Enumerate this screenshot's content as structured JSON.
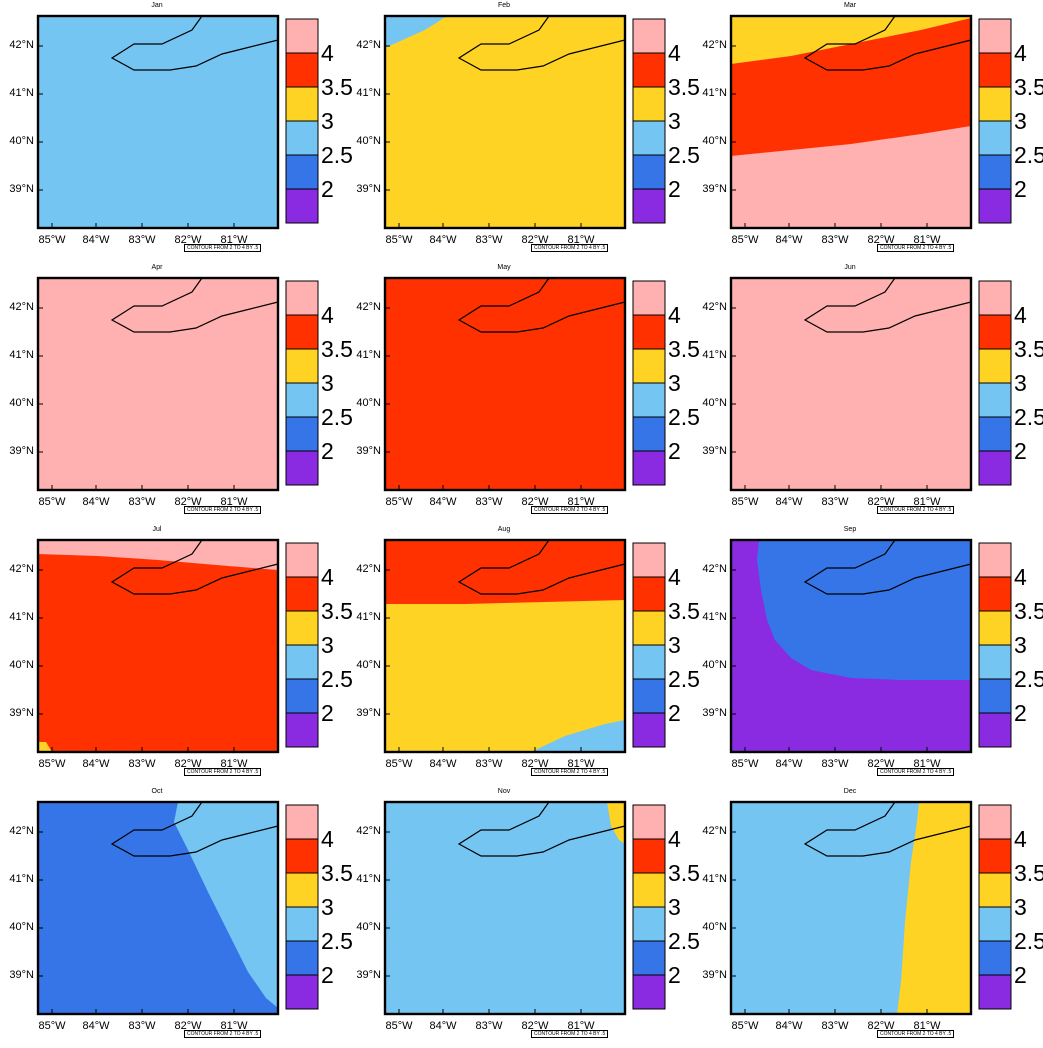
{
  "palette": {
    "purple": "#8a2be2",
    "blue": "#3575e8",
    "lightblue": "#74c5f2",
    "yellow": "#fed323",
    "red": "#ff3100",
    "pink": "#ffb0b0"
  },
  "colorbar": {
    "colors_bottom_to_top": [
      "#8a2be2",
      "#3575e8",
      "#74c5f2",
      "#fed323",
      "#ff3100",
      "#ffb0b0"
    ],
    "labels": [
      "2",
      "2.5",
      "3",
      "3.5",
      "4"
    ]
  },
  "axes": {
    "lat_labels": [
      "42°N",
      "41°N",
      "40°N",
      "39°N"
    ],
    "lon_labels": [
      "85°W",
      "84°W",
      "83°W",
      "82°W",
      "81°W"
    ],
    "lon_range": [
      -85.2,
      -80.4
    ],
    "lat_range": [
      38.2,
      42.6
    ]
  },
  "contour_note": "CONTOUR FROM 2 TO 4 BY .5",
  "panels": [
    {
      "title": "Jan",
      "pattern": "solid",
      "colors": [
        "#74c5f2"
      ]
    },
    {
      "title": "Feb",
      "pattern": "corner-tl",
      "colors": [
        "#fed323",
        "#74c5f2"
      ]
    },
    {
      "title": "Mar",
      "pattern": "three-bands",
      "colors": [
        "#fed323",
        "#ff3100",
        "#ffb0b0"
      ]
    },
    {
      "title": "Apr",
      "pattern": "solid",
      "colors": [
        "#ffb0b0"
      ]
    },
    {
      "title": "May",
      "pattern": "solid",
      "colors": [
        "#ff3100"
      ]
    },
    {
      "title": "Jun",
      "pattern": "solid",
      "colors": [
        "#ffb0b0"
      ]
    },
    {
      "title": "Jul",
      "pattern": "top-strip",
      "colors": [
        "#ff3100",
        "#ffb0b0",
        "#fed323"
      ]
    },
    {
      "title": "Aug",
      "pattern": "top-half",
      "colors": [
        "#fed323",
        "#ff3100",
        "#74c5f2"
      ]
    },
    {
      "title": "Sep",
      "pattern": "curve-corner",
      "colors": [
        "#8a2be2",
        "#3575e8"
      ]
    },
    {
      "title": "Oct",
      "pattern": "diagonal",
      "colors": [
        "#3575e8",
        "#74c5f2"
      ]
    },
    {
      "title": "Nov",
      "pattern": "corner-tr",
      "colors": [
        "#74c5f2",
        "#fed323"
      ]
    },
    {
      "title": "Dec",
      "pattern": "vertical-split",
      "colors": [
        "#74c5f2",
        "#fed323"
      ]
    }
  ]
}
